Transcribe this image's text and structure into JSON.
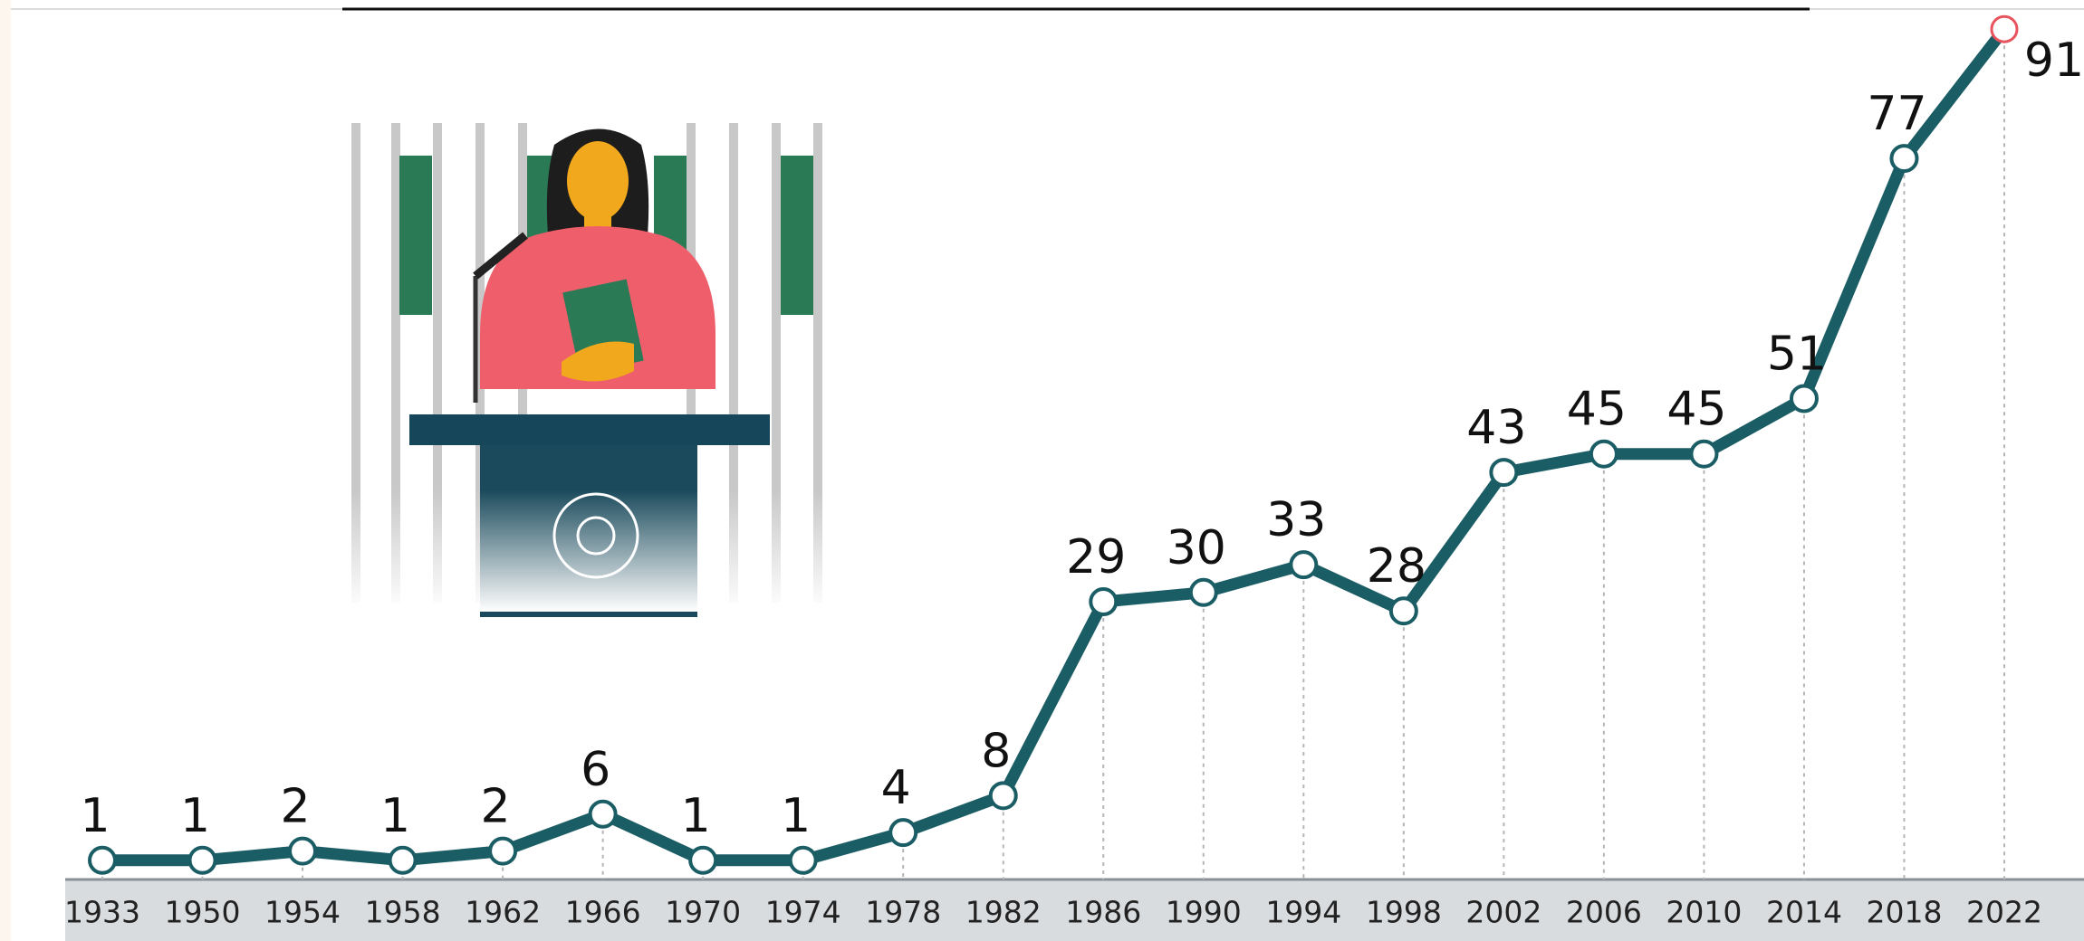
{
  "chart_data": {
    "type": "line",
    "categories": [
      "1933",
      "1950",
      "1954",
      "1958",
      "1962",
      "1966",
      "1970",
      "1974",
      "1978",
      "1982",
      "1986",
      "1990",
      "1994",
      "1998",
      "2002",
      "2006",
      "2010",
      "2014",
      "2018",
      "2022"
    ],
    "series": [
      {
        "color": "#1b5d65",
        "values": [
          1,
          1,
          2,
          1,
          2,
          6,
          1,
          1,
          4,
          8,
          29,
          30,
          33,
          28,
          43,
          45,
          45,
          51,
          77,
          91
        ]
      }
    ],
    "highlight_color": "#e8545e",
    "ylim": [
      0,
      92
    ]
  }
}
